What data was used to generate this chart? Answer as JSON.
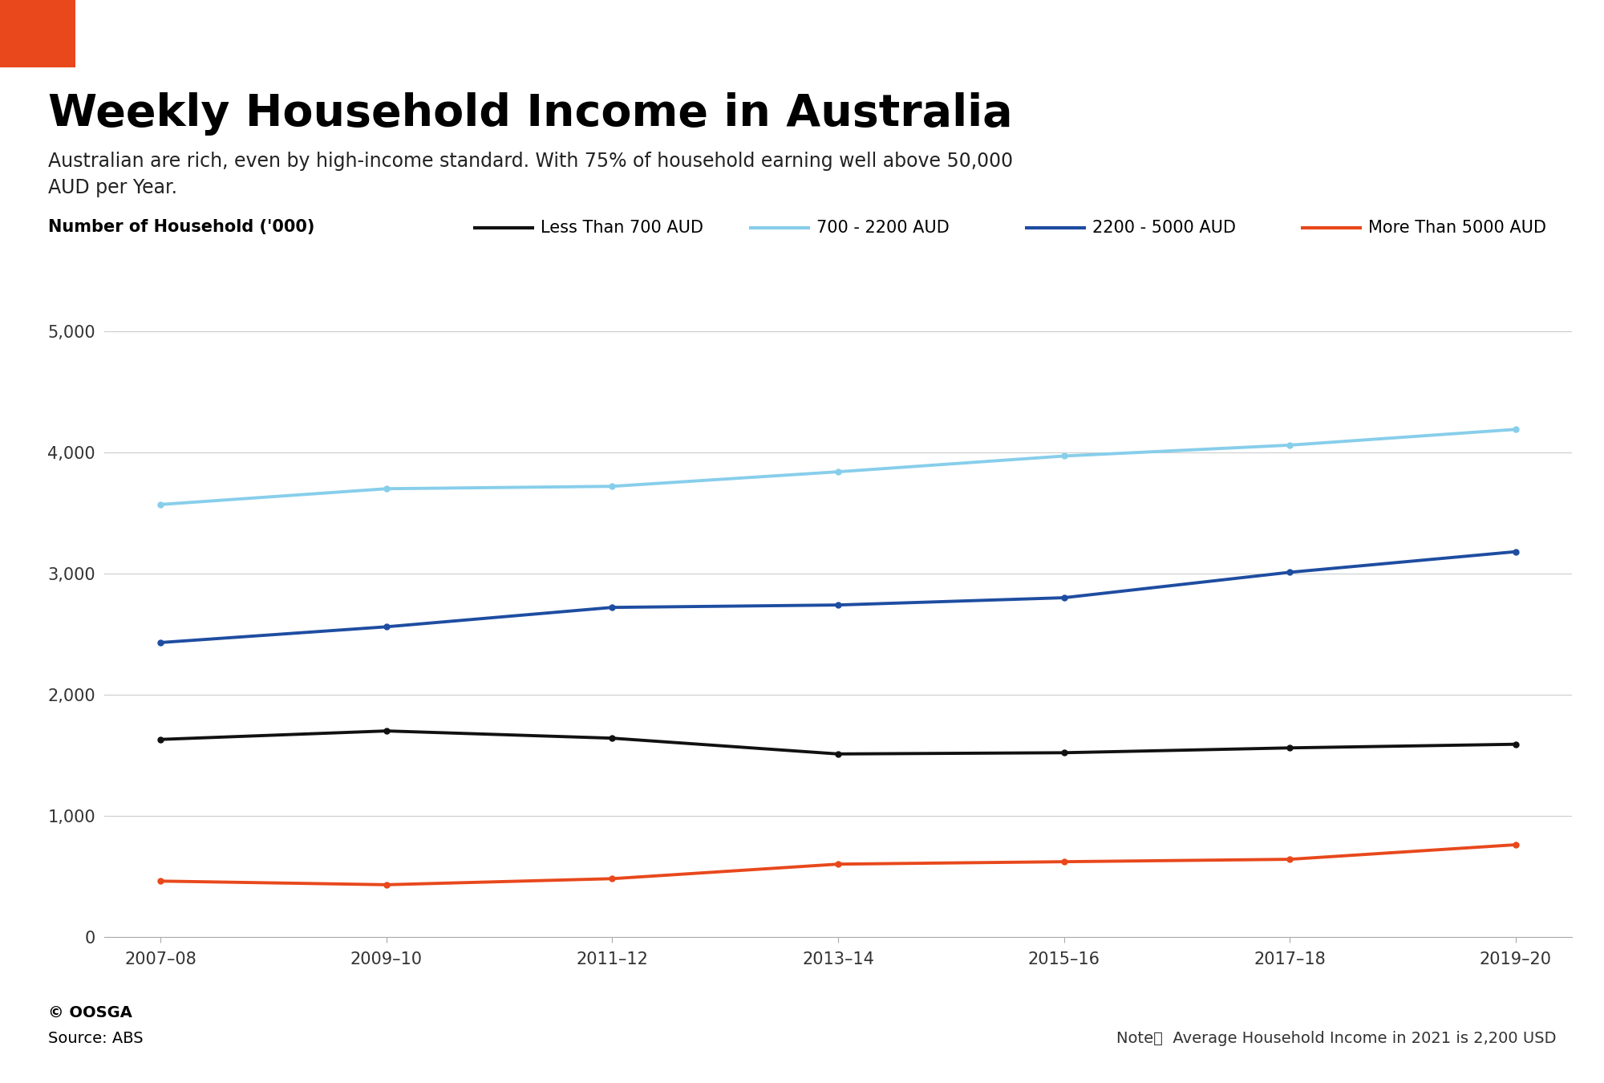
{
  "title": "Weekly Household Income in Australia",
  "subtitle": "Australian are rich, even by high-income standard. With 75% of household earning well above 50,000\nAUD per Year.",
  "ylabel": "Number of Household ('000)",
  "orange_rect_color": "#E8481C",
  "background_color": "#ffffff",
  "x_labels": [
    "2007–08",
    "2009–10",
    "2011–12",
    "2013–14",
    "2015–16",
    "2017–18",
    "2019–20"
  ],
  "x_values": [
    2007,
    2009,
    2011,
    2013,
    2015,
    2017,
    2019
  ],
  "series": [
    {
      "label": "Less Than 700 AUD",
      "color": "#111111",
      "linewidth": 2.8,
      "values": [
        1630,
        1700,
        1640,
        1510,
        1520,
        1560,
        1590
      ]
    },
    {
      "label": "700 - 2200 AUD",
      "color": "#87CEEB",
      "linewidth": 2.8,
      "values": [
        3570,
        3700,
        3720,
        3840,
        3970,
        4060,
        4190
      ]
    },
    {
      "label": "2200 - 5000 AUD",
      "color": "#1E4DA1",
      "linewidth": 2.8,
      "values": [
        2430,
        2560,
        2720,
        2740,
        2800,
        3010,
        3180
      ]
    },
    {
      "label": "More Than 5000 AUD",
      "color": "#E8481C",
      "linewidth": 2.8,
      "values": [
        460,
        430,
        480,
        600,
        620,
        640,
        760
      ]
    }
  ],
  "ylim": [
    0,
    5500
  ],
  "yticks": [
    0,
    1000,
    2000,
    3000,
    4000,
    5000
  ],
  "ytick_labels": [
    "0",
    "1,000",
    "2,000",
    "3,000",
    "4,000",
    "5,000"
  ],
  "footer_left_1": "© OOSGA",
  "footer_left_2": "Source: ABS",
  "footer_right": "Note：  Average Household Income in 2021 is 2,200 USD",
  "title_fontsize": 40,
  "subtitle_fontsize": 17,
  "ylabel_fontsize": 15,
  "tick_fontsize": 15,
  "legend_fontsize": 15,
  "footer_fontsize": 14
}
